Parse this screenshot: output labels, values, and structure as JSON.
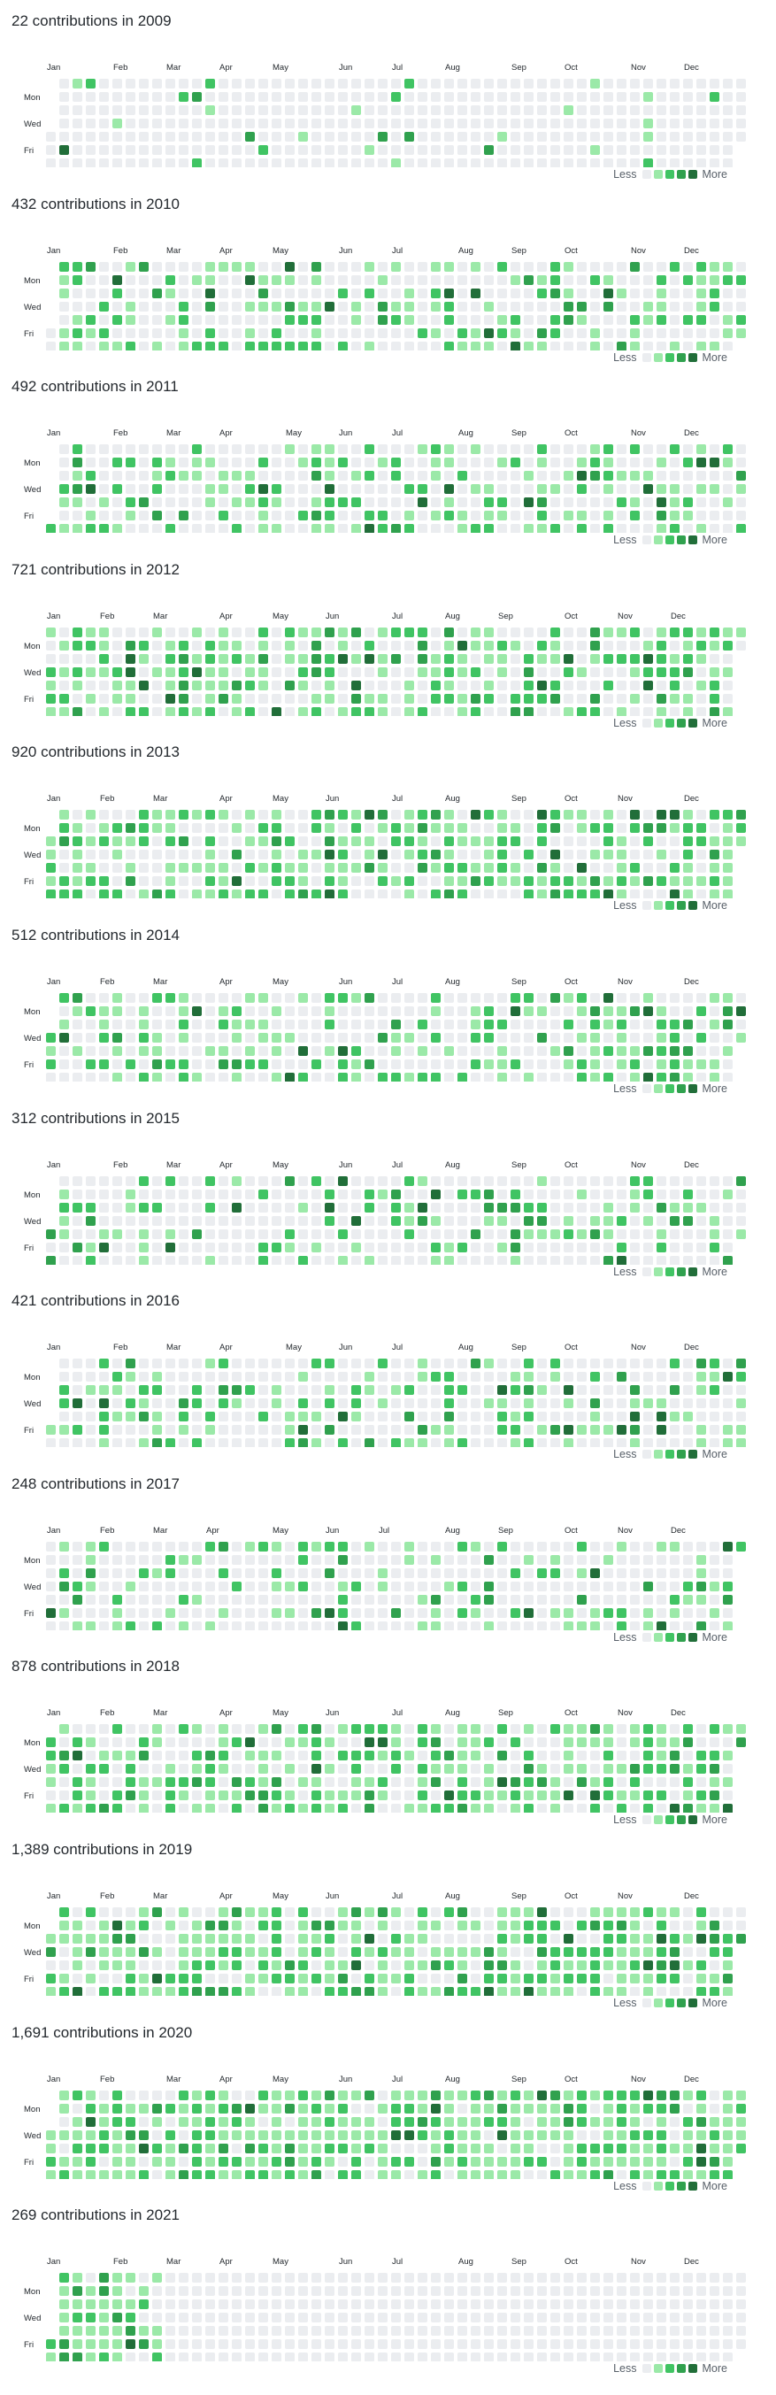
{
  "page": {
    "legend": {
      "less": "Less",
      "more": "More"
    },
    "colors": [
      "#ebedf0",
      "#9be9a8",
      "#40c463",
      "#30a14e",
      "#216e39"
    ],
    "month_names": [
      "Jan",
      "Feb",
      "Mar",
      "Apr",
      "May",
      "Jun",
      "Jul",
      "Aug",
      "Sep",
      "Oct",
      "Nov",
      "Dec"
    ],
    "day_labels": [
      "Mon",
      "Wed",
      "Fri"
    ]
  },
  "years": [
    {
      "year": 2009,
      "title": "22 contributions in 2009",
      "activity": 0.1
    },
    {
      "year": 2010,
      "title": "432 contributions in 2010",
      "activity": 0.45
    },
    {
      "year": 2011,
      "title": "492 contributions in 2011",
      "activity": 0.5
    },
    {
      "year": 2012,
      "title": "721 contributions in 2012",
      "activity": 0.62
    },
    {
      "year": 2013,
      "title": "920 contributions in 2013",
      "activity": 0.68
    },
    {
      "year": 2014,
      "title": "512 contributions in 2014",
      "activity": 0.5
    },
    {
      "year": 2015,
      "title": "312 contributions in 2015",
      "activity": 0.38
    },
    {
      "year": 2016,
      "title": "421 contributions in 2016",
      "activity": 0.45
    },
    {
      "year": 2017,
      "title": "248 contributions in 2017",
      "activity": 0.32
    },
    {
      "year": 2018,
      "title": "878 contributions in 2018",
      "activity": 0.66
    },
    {
      "year": 2019,
      "title": "1,389 contributions in 2019",
      "activity": 0.75
    },
    {
      "year": 2020,
      "title": "1,691 contributions in 2020",
      "activity": 0.82
    },
    {
      "year": 2021,
      "title": "269 contributions in 2021",
      "activity": 0.8,
      "days_elapsed": 58
    }
  ]
}
